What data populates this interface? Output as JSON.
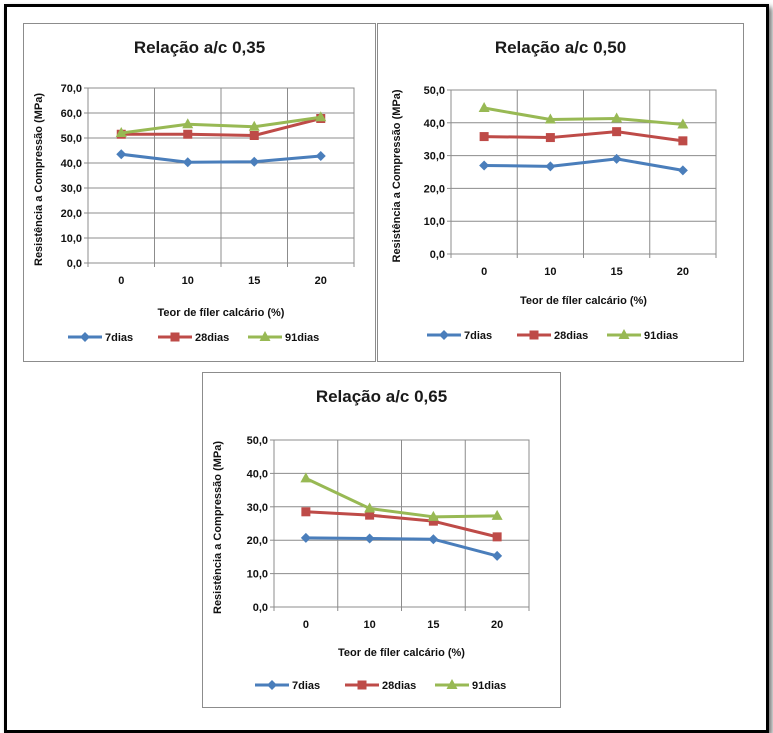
{
  "chart_data": [
    {
      "type": "line",
      "title": "Relação a/c 0,35",
      "xlabel": "Teor de fíler calcário (%)",
      "ylabel": "Resistência a Compressão (MPa)",
      "categories": [
        "0",
        "10",
        "15",
        "20"
      ],
      "ylim": [
        0,
        70
      ],
      "yticks": [
        "0,0",
        "10,0",
        "20,0",
        "30,0",
        "40,0",
        "50,0",
        "60,0",
        "70,0"
      ],
      "grid": true,
      "legend_position": "bottom",
      "series": [
        {
          "name": "7dias",
          "values": [
            43.5,
            40.3,
            40.5,
            42.8
          ],
          "color": "#4a7ebb",
          "marker": "diamond"
        },
        {
          "name": "28dias",
          "values": [
            51.5,
            51.5,
            51.0,
            57.8
          ],
          "color": "#be4b48",
          "marker": "square"
        },
        {
          "name": "91dias",
          "values": [
            52.0,
            55.5,
            54.5,
            58.3
          ],
          "color": "#98b954",
          "marker": "triangle"
        }
      ]
    },
    {
      "type": "line",
      "title": "Relação a/c 0,50",
      "xlabel": "Teor de fíler calcário (%)",
      "ylabel": "Resistência a Compressão (MPa)",
      "categories": [
        "0",
        "10",
        "15",
        "20"
      ],
      "ylim": [
        0,
        50
      ],
      "yticks": [
        "0,0",
        "10,0",
        "20,0",
        "30,0",
        "40,0",
        "50,0"
      ],
      "grid": true,
      "legend_position": "bottom",
      "series": [
        {
          "name": "7dias",
          "values": [
            27.0,
            26.7,
            29.0,
            25.5
          ],
          "color": "#4a7ebb",
          "marker": "diamond"
        },
        {
          "name": "28dias",
          "values": [
            35.8,
            35.5,
            37.3,
            34.5
          ],
          "color": "#be4b48",
          "marker": "square"
        },
        {
          "name": "91dias",
          "values": [
            44.5,
            41.0,
            41.3,
            39.5
          ],
          "color": "#98b954",
          "marker": "triangle"
        }
      ]
    },
    {
      "type": "line",
      "title": "Relação a/c 0,65",
      "xlabel": "Teor de fíler calcário (%)",
      "ylabel": "Resistência a Compressão (MPa)",
      "categories": [
        "0",
        "10",
        "15",
        "20"
      ],
      "ylim": [
        0,
        50
      ],
      "yticks": [
        "0,0",
        "10,0",
        "20,0",
        "30,0",
        "40,0",
        "50,0"
      ],
      "grid": true,
      "legend_position": "bottom",
      "series": [
        {
          "name": "7dias",
          "values": [
            20.7,
            20.5,
            20.3,
            15.3
          ],
          "color": "#4a7ebb",
          "marker": "diamond"
        },
        {
          "name": "28dias",
          "values": [
            28.5,
            27.5,
            25.7,
            21.0
          ],
          "color": "#be4b48",
          "marker": "square"
        },
        {
          "name": "91dias",
          "values": [
            38.5,
            29.5,
            27.0,
            27.3
          ],
          "color": "#98b954",
          "marker": "triangle"
        }
      ]
    }
  ]
}
